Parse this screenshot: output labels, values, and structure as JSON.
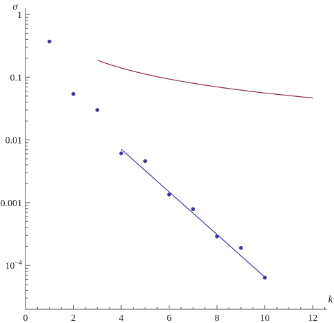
{
  "chart_data": {
    "type": "scatter",
    "xlabel": "k",
    "ylabel": "σ",
    "xlim": [
      0,
      12.6
    ],
    "ylim": [
      2e-05,
      1
    ],
    "y_scale": "log",
    "grid": false,
    "x_ticks": [
      {
        "value": 0,
        "label": "0"
      },
      {
        "value": 2,
        "label": "2"
      },
      {
        "value": 4,
        "label": "4"
      },
      {
        "value": 6,
        "label": "6"
      },
      {
        "value": 8,
        "label": "8"
      },
      {
        "value": 10,
        "label": "10"
      },
      {
        "value": 12,
        "label": "12"
      }
    ],
    "y_ticks": [
      {
        "value": 1,
        "label": "1"
      },
      {
        "value": 0.1,
        "label": "0.1"
      },
      {
        "value": 0.01,
        "label": "0.01"
      },
      {
        "value": 0.001,
        "label": "0.001"
      }
    ],
    "y_tick_special": {
      "value": 0.0001,
      "base": "10",
      "exponent": "−4"
    },
    "series": [
      {
        "kind": "points",
        "color": "#3b3a9a",
        "points": [
          {
            "x": 1,
            "y": 0.37
          },
          {
            "x": 2,
            "y": 0.054
          },
          {
            "x": 3,
            "y": 0.03
          },
          {
            "x": 4,
            "y": 0.0061
          },
          {
            "x": 5,
            "y": 0.0046
          },
          {
            "x": 6,
            "y": 0.00135
          },
          {
            "x": 7,
            "y": 0.00079
          },
          {
            "x": 8,
            "y": 0.00029
          },
          {
            "x": 9,
            "y": 0.00019
          },
          {
            "x": 10,
            "y": 6.4e-05
          }
        ]
      },
      {
        "kind": "line",
        "color": "#3b3a9a",
        "points": [
          {
            "x": 4,
            "y": 0.0071
          },
          {
            "x": 10,
            "y": 6.5e-05
          }
        ]
      },
      {
        "kind": "curve",
        "color": "#8b2252",
        "function": "0.56 / k",
        "domain": [
          3,
          12
        ],
        "coefficient": 0.56
      }
    ]
  }
}
